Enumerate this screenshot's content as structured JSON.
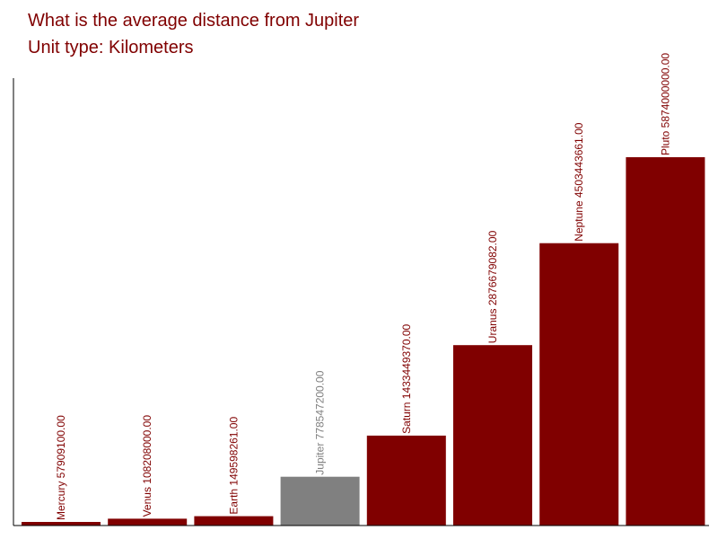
{
  "chart_data": {
    "type": "bar",
    "title": "What is the average distance from Jupiter",
    "subtitle": "Unit type: Kilometers",
    "categories": [
      "Mercury",
      "Venus",
      "Earth",
      "Jupiter",
      "Saturn",
      "Uranus",
      "Neptune",
      "Pluto"
    ],
    "values": [
      57909100.0,
      108208000.0,
      149598261.0,
      778547200.0,
      1433449370.0,
      2876679082.0,
      4503443661.0,
      5874000000.0
    ],
    "value_labels": [
      "57909100.00",
      "108208000.00",
      "149598261.00",
      "778547200.00",
      "1433449370.00",
      "2876679082.00",
      "4503443661.00",
      "5874000000.00"
    ],
    "highlight_category": "Jupiter",
    "colors": {
      "bar": "#800000",
      "highlight": "#808080",
      "axis": "#000000",
      "title": "#800000"
    },
    "grid": false,
    "legend": "none"
  }
}
